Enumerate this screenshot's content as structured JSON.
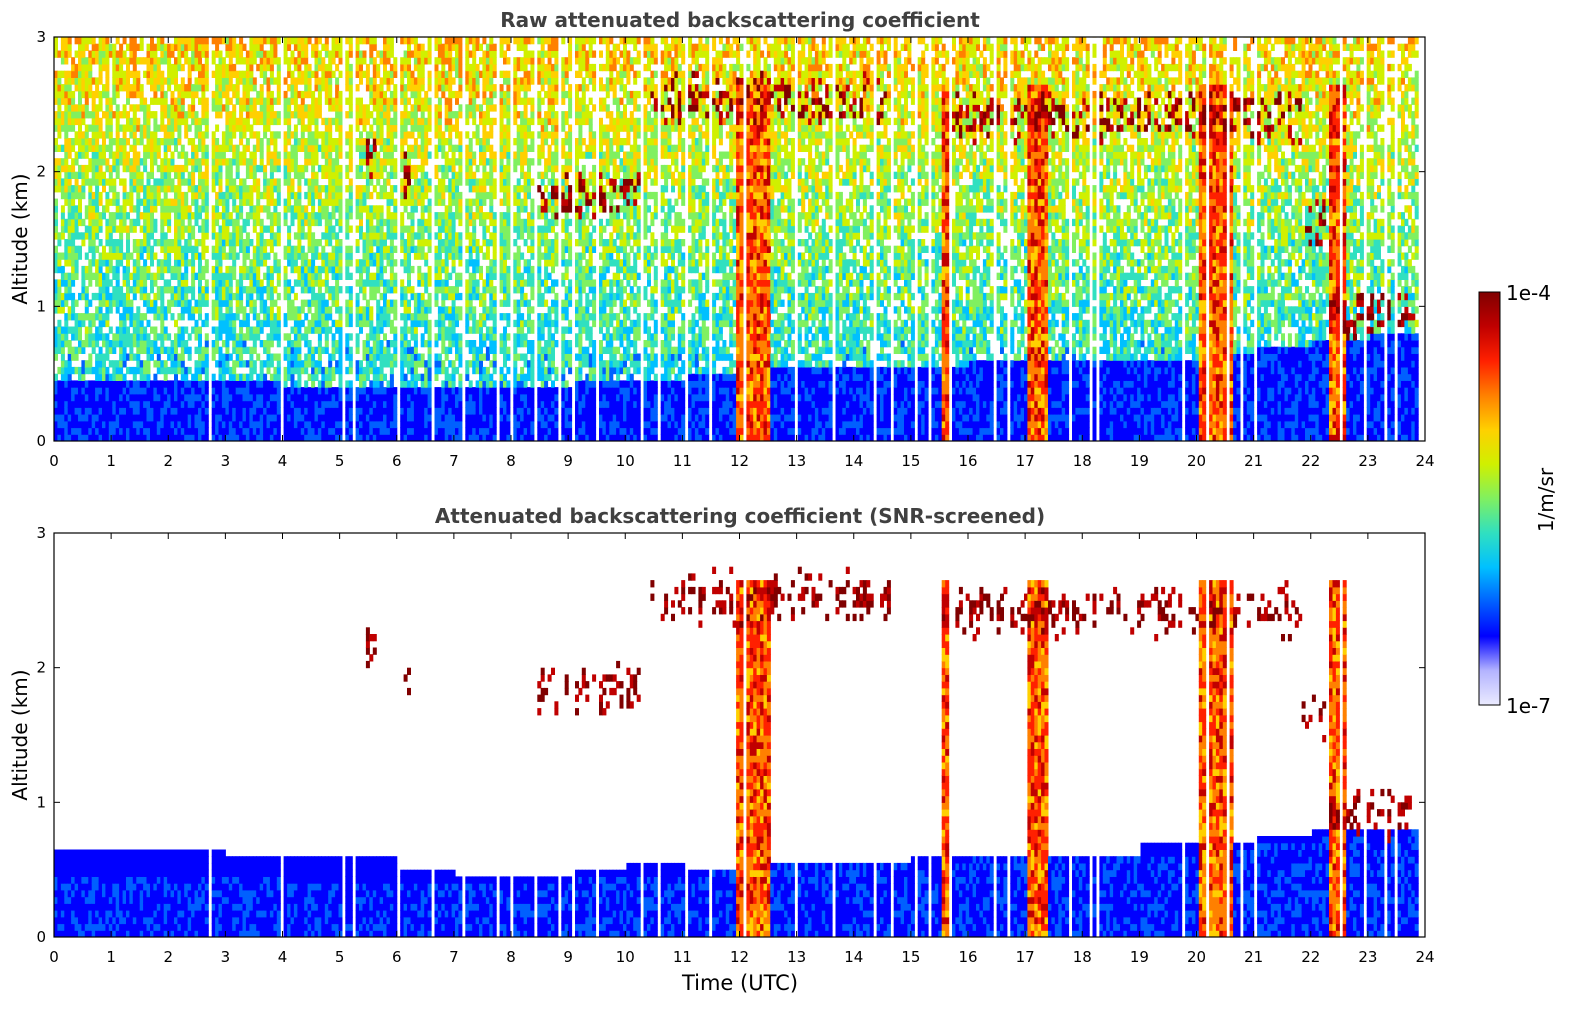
{
  "chart_data": [
    {
      "type": "heatmap",
      "title": "Raw attenuated backscattering coefficient",
      "xlabel": "",
      "ylabel": "Altitude (km)",
      "xlim": [
        0,
        24
      ],
      "ylim": [
        0,
        3
      ],
      "xticks": [
        "0",
        "1",
        "2",
        "3",
        "4",
        "5",
        "6",
        "7",
        "8",
        "9",
        "10",
        "11",
        "12",
        "13",
        "14",
        "15",
        "16",
        "17",
        "18",
        "19",
        "20",
        "21",
        "22",
        "23",
        "24"
      ],
      "yticks": [
        "0",
        "1",
        "2",
        "3"
      ],
      "time_utc": [
        0.5,
        1.5,
        2.5,
        3.5,
        4.5,
        5.5,
        6.5,
        7.5,
        8.5,
        9.5,
        10.5,
        11.5,
        12.5,
        13.5,
        14.5,
        15.5,
        16.5,
        17.5,
        18.5,
        19.5,
        20.5,
        21.5,
        22.5,
        23.5
      ],
      "layers": [
        {
          "name": "near-surface layer top (km)",
          "values": [
            0.4,
            0.4,
            0.4,
            0.4,
            0.38,
            0.38,
            0.38,
            0.38,
            0.38,
            0.4,
            0.42,
            0.45,
            0.5,
            0.5,
            0.5,
            0.5,
            0.55,
            0.55,
            0.55,
            0.6,
            0.65,
            0.7,
            0.75,
            0.8
          ]
        }
      ],
      "cloud_features": [
        {
          "time_start": 5.4,
          "time_end": 5.6,
          "altitude_km": 2.12,
          "description": "thin cloud patch"
        },
        {
          "time_start": 6.1,
          "time_end": 6.2,
          "altitude_km": 1.95,
          "description": "thin cloud patch"
        },
        {
          "time_start": 8.4,
          "time_end": 10.3,
          "altitude_km": 1.8,
          "description": "broken cloud layer"
        },
        {
          "time_start": 10.4,
          "time_end": 14.7,
          "altitude_km": 2.5,
          "description": "scattered clouds"
        },
        {
          "time_start": 15.5,
          "time_end": 21.8,
          "altitude_km": 2.4,
          "description": "cloud base with precipitation columns"
        },
        {
          "time_start": 21.8,
          "time_end": 22.2,
          "altitude_km": 1.6,
          "description": "descending cloud base"
        },
        {
          "time_start": 22.3,
          "time_end": 23.8,
          "altitude_km": 0.9,
          "description": "low cloud base"
        }
      ],
      "precipitation_periods": [
        [
          11.9,
          12.5
        ],
        [
          15.5,
          15.7
        ],
        [
          17.0,
          17.4
        ],
        [
          20.0,
          20.6
        ],
        [
          22.3,
          22.6
        ]
      ],
      "grid": false
    },
    {
      "type": "heatmap",
      "title": "Attenuated backscattering coefficient (SNR-screened)",
      "xlabel": "Time (UTC)",
      "ylabel": "Altitude (km)",
      "xlim": [
        0,
        24
      ],
      "ylim": [
        0,
        3
      ],
      "xticks": [
        "0",
        "1",
        "2",
        "3",
        "4",
        "5",
        "6",
        "7",
        "8",
        "9",
        "10",
        "11",
        "12",
        "13",
        "14",
        "15",
        "16",
        "17",
        "18",
        "19",
        "20",
        "21",
        "22",
        "23",
        "24"
      ],
      "yticks": [
        "0",
        "1",
        "2",
        "3"
      ],
      "screened_top_km": [
        0.65,
        0.62,
        0.62,
        0.6,
        0.58,
        0.55,
        0.45,
        0.42,
        0.42,
        0.48,
        0.5,
        0.45,
        0.5,
        0.5,
        0.5,
        0.55,
        0.6,
        0.6,
        0.6,
        0.7,
        0.7,
        0.75,
        0.8,
        0.8
      ],
      "grid": false
    }
  ],
  "colorbar": {
    "label": "1/m/sr",
    "max_label": "1e-4",
    "min_label": "1e-7",
    "colors": [
      "#ebebff",
      "#b3b3ff",
      "#0000ff",
      "#0060ff",
      "#00c0ff",
      "#30e0c0",
      "#80f060",
      "#d0f000",
      "#ffd000",
      "#ff8000",
      "#ff2000",
      "#c00000",
      "#800000"
    ]
  }
}
